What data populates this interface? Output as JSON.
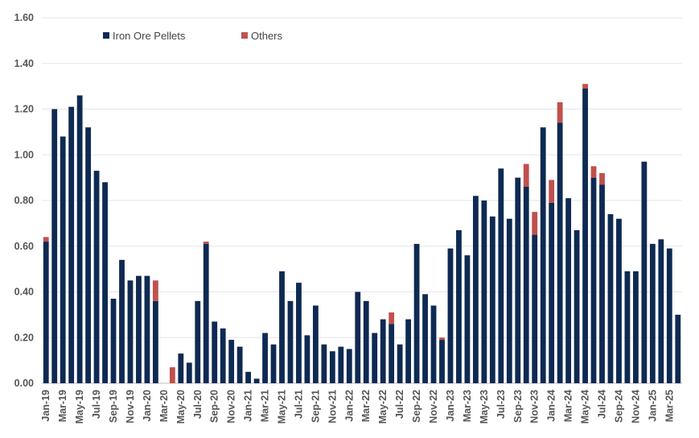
{
  "chart_data": {
    "type": "bar",
    "stacked": true,
    "title": "",
    "xlabel": "",
    "ylabel": "",
    "ylim": [
      0,
      1.6
    ],
    "yticks": [
      "0.00",
      "0.20",
      "0.40",
      "0.60",
      "0.80",
      "1.00",
      "1.20",
      "1.40",
      "1.60"
    ],
    "grid": true,
    "legend_position": "top-left",
    "categories": [
      "Jan-19",
      "Feb-19",
      "Mar-19",
      "Apr-19",
      "May-19",
      "Jun-19",
      "Jul-19",
      "Aug-19",
      "Sep-19",
      "Oct-19",
      "Nov-19",
      "Dec-19",
      "Jan-20",
      "Feb-20",
      "Mar-20",
      "Apr-20",
      "May-20",
      "Jun-20",
      "Jul-20",
      "Aug-20",
      "Sep-20",
      "Oct-20",
      "Nov-20",
      "Dec-20",
      "Jan-21",
      "Feb-21",
      "Mar-21",
      "Apr-21",
      "May-21",
      "Jun-21",
      "Jul-21",
      "Aug-21",
      "Sep-21",
      "Oct-21",
      "Nov-21",
      "Dec-21",
      "Jan-22",
      "Feb-22",
      "Mar-22",
      "Apr-22",
      "May-22",
      "Jun-22",
      "Jul-22",
      "Aug-22",
      "Sep-22",
      "Oct-22",
      "Nov-22",
      "Dec-22",
      "Jan-23",
      "Feb-23",
      "Mar-23",
      "Apr-23",
      "May-23",
      "Jun-23",
      "Jul-23",
      "Aug-23",
      "Sep-23",
      "Oct-23",
      "Nov-23",
      "Dec-23",
      "Jan-24",
      "Feb-24",
      "Mar-24",
      "Apr-24",
      "May-24",
      "Jun-24",
      "Jul-24",
      "Aug-24",
      "Sep-24",
      "Oct-24",
      "Nov-24",
      "Dec-24",
      "Jan-25",
      "Feb-25",
      "Mar-25",
      "Apr-25"
    ],
    "xtick_labels": [
      "Jan-19",
      "Mar-19",
      "May-19",
      "Jul-19",
      "Sep-19",
      "Nov-19",
      "Jan-20",
      "Mar-20",
      "May-20",
      "Jul-20",
      "Sep-20",
      "Nov-20",
      "Jan-21",
      "Mar-21",
      "May-21",
      "Jul-21",
      "Sep-21",
      "Nov-21",
      "Jan-22",
      "Mar-22",
      "May-22",
      "Jul-22",
      "Sep-22",
      "Nov-22",
      "Jan-23",
      "Mar-23",
      "May-23",
      "Jul-23",
      "Sep-23",
      "Nov-23",
      "Jan-24",
      "Mar-24",
      "May-24",
      "Jul-24",
      "Sep-24",
      "Nov-24",
      "Jan-25",
      "Mar-25"
    ],
    "series": [
      {
        "name": "Iron Ore Pellets",
        "color": "#0e2a52",
        "values": [
          0.62,
          1.2,
          1.08,
          1.21,
          1.26,
          1.12,
          0.93,
          0.88,
          0.37,
          0.54,
          0.45,
          0.47,
          0.47,
          0.36,
          0.0,
          0.0,
          0.13,
          0.09,
          0.36,
          0.61,
          0.27,
          0.24,
          0.19,
          0.16,
          0.05,
          0.02,
          0.22,
          0.17,
          0.49,
          0.36,
          0.44,
          0.21,
          0.34,
          0.17,
          0.14,
          0.16,
          0.15,
          0.4,
          0.36,
          0.22,
          0.28,
          0.26,
          0.17,
          0.28,
          0.61,
          0.39,
          0.34,
          0.19,
          0.59,
          0.67,
          0.56,
          0.82,
          0.8,
          0.73,
          0.94,
          0.72,
          0.9,
          0.86,
          0.65,
          1.12,
          0.79,
          1.14,
          0.81,
          0.67,
          1.29,
          0.9,
          0.87,
          0.74,
          0.72,
          0.49,
          0.49,
          0.97,
          0.61,
          0.63,
          0.59,
          0.3
        ]
      },
      {
        "name": "Others",
        "color": "#c0504d",
        "values": [
          0.02,
          0,
          0,
          0,
          0,
          0,
          0,
          0,
          0,
          0,
          0,
          0,
          0,
          0.09,
          0,
          0.07,
          0,
          0,
          0,
          0.01,
          0,
          0,
          0,
          0,
          0,
          0,
          0,
          0,
          0,
          0,
          0,
          0,
          0,
          0,
          0,
          0,
          0,
          0,
          0,
          0,
          0,
          0.05,
          0,
          0,
          0,
          0,
          0,
          0.01,
          0,
          0,
          0,
          0,
          0,
          0,
          0,
          0,
          0,
          0.1,
          0.1,
          0,
          0.1,
          0.09,
          0,
          0,
          0.02,
          0.05,
          0.05,
          0,
          0,
          0,
          0,
          0,
          0,
          0,
          0,
          0
        ]
      }
    ]
  }
}
